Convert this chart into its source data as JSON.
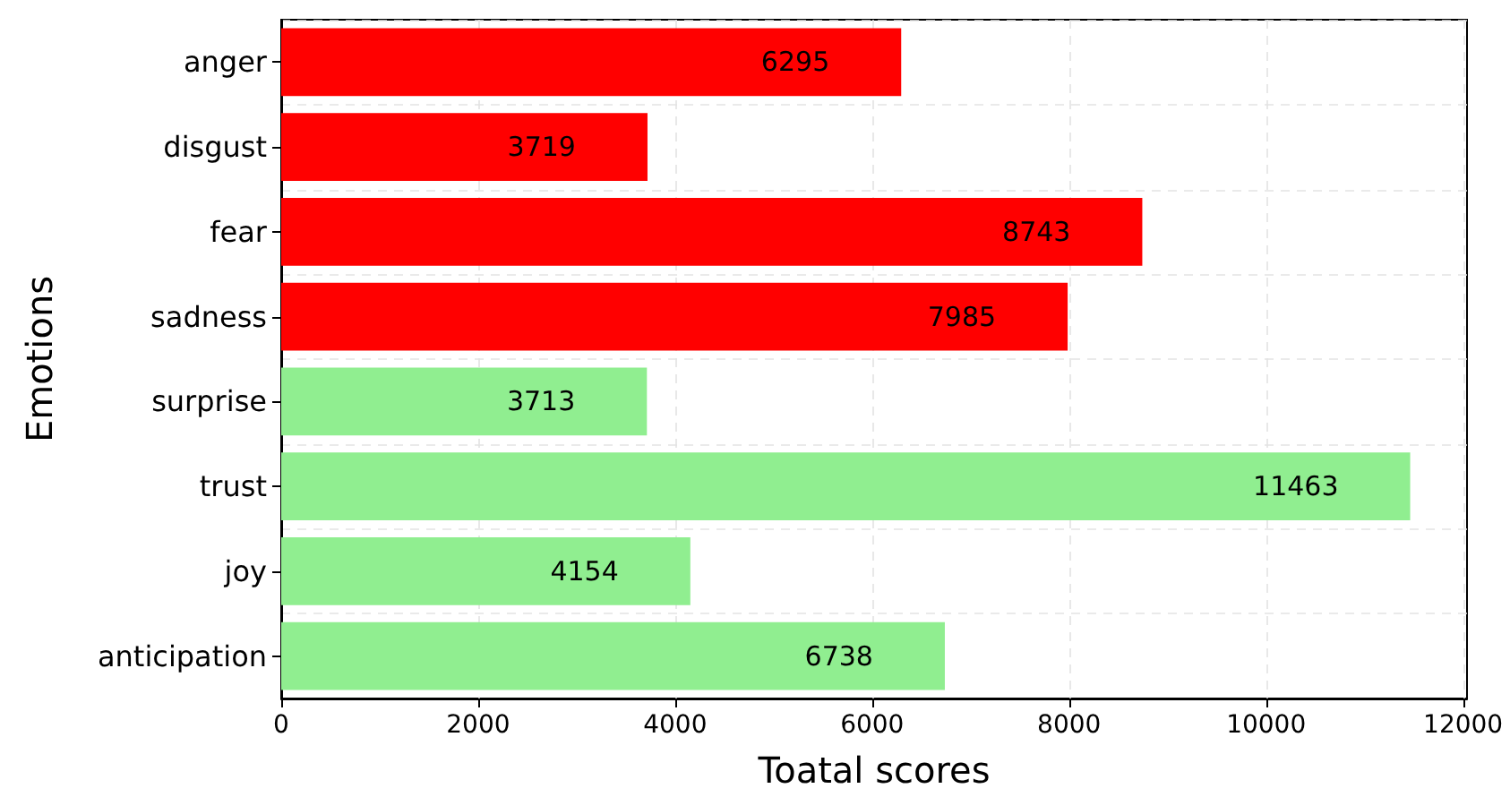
{
  "chart_data": {
    "type": "bar",
    "orientation": "horizontal",
    "xlabel": "Toatal scores",
    "ylabel": "Emotions",
    "categories": [
      "anger",
      "disgust",
      "fear",
      "sadness",
      "surprise",
      "trust",
      "joy",
      "anticipation"
    ],
    "values": [
      6295,
      3719,
      8743,
      7985,
      3713,
      11463,
      4154,
      6738
    ],
    "colors": [
      "#ff0000",
      "#ff0000",
      "#ff0000",
      "#ff0000",
      "#90ee90",
      "#90ee90",
      "#90ee90",
      "#90ee90"
    ],
    "xlim": [
      0,
      12040
    ],
    "xticks": [
      0,
      2000,
      4000,
      6000,
      8000,
      10000,
      12000
    ],
    "grid": true,
    "data_labels": true
  }
}
